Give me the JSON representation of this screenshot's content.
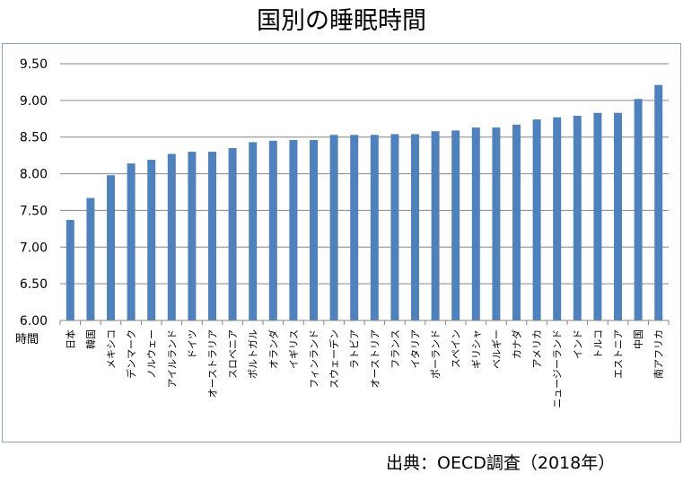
{
  "chart_data": {
    "type": "bar",
    "title": "国別の睡眠時間",
    "ylabel": "時間",
    "xlabel": "",
    "ylim": [
      6.0,
      9.5
    ],
    "yticks": [
      "6.00",
      "6.50",
      "7.00",
      "7.50",
      "8.00",
      "8.50",
      "9.00",
      "9.50"
    ],
    "grid": true,
    "bar_color": "#4f81bd",
    "categories": [
      "日本",
      "韓国",
      "メキシコ",
      "デンマーク",
      "ノルウェー",
      "アイルランド",
      "ドイツ",
      "オーストラリア",
      "スロベニア",
      "ポルトガル",
      "オランダ",
      "イギリス",
      "フィンランド",
      "スウェーデン",
      "ラトビア",
      "オーストリア",
      "フランス",
      "イタリア",
      "ポーランド",
      "スペイン",
      "ギリシャ",
      "ベルギー",
      "カナダ",
      "アメリカ",
      "ニュージーランド",
      "インド",
      "トルコ",
      "エストニア",
      "中国",
      "南アフリカ"
    ],
    "values": [
      7.37,
      7.67,
      7.98,
      8.14,
      8.19,
      8.27,
      8.3,
      8.3,
      8.35,
      8.43,
      8.45,
      8.46,
      8.46,
      8.53,
      8.53,
      8.53,
      8.54,
      8.54,
      8.58,
      8.59,
      8.63,
      8.63,
      8.67,
      8.74,
      8.77,
      8.79,
      8.83,
      8.83,
      9.02,
      9.21
    ]
  },
  "source": "出典：OECD調査（2018年）"
}
